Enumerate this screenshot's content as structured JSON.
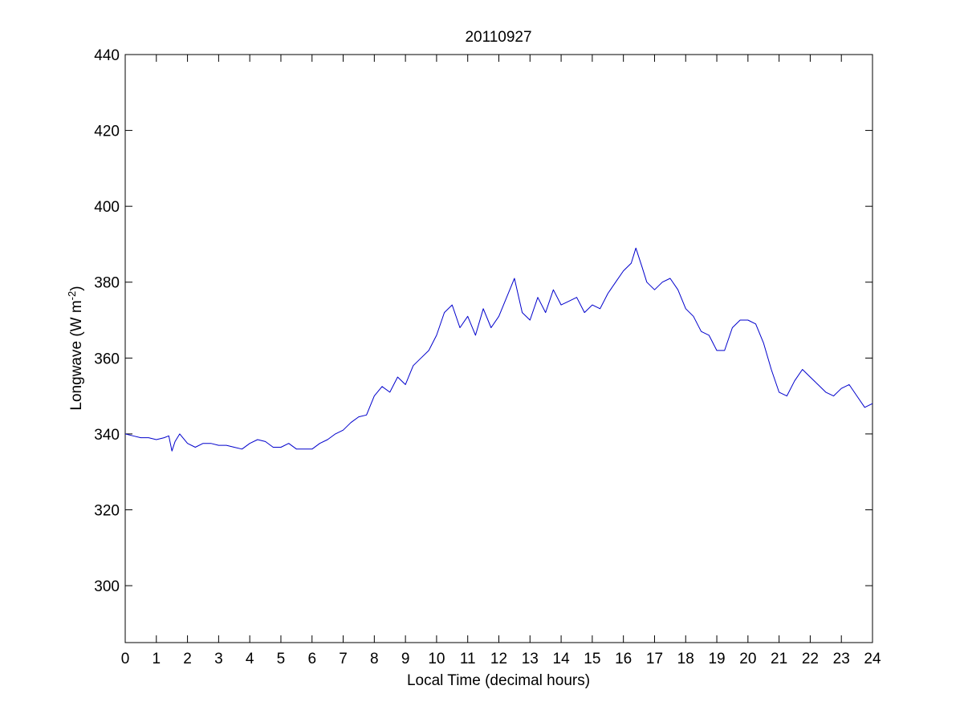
{
  "chart_data": {
    "type": "line",
    "title": "20110927",
    "xlabel": "Local Time (decimal hours)",
    "ylabel_main": "Longwave (W m",
    "ylabel_sup": "-2",
    "ylabel_tail": ")",
    "xlim": [
      0,
      24
    ],
    "ylim": [
      285,
      440
    ],
    "xticks": [
      0,
      1,
      2,
      3,
      4,
      5,
      6,
      7,
      8,
      9,
      10,
      11,
      12,
      13,
      14,
      15,
      16,
      17,
      18,
      19,
      20,
      21,
      22,
      23,
      24
    ],
    "yticks": [
      300,
      320,
      340,
      360,
      380,
      400,
      420,
      440
    ],
    "grid": false,
    "line_color": "#0000cc",
    "series": [
      {
        "x": [
          0,
          0.25,
          0.5,
          0.75,
          1,
          1.25,
          1.4,
          1.5,
          1.6,
          1.75,
          2,
          2.25,
          2.5,
          2.75,
          3,
          3.25,
          3.5,
          3.75,
          4,
          4.25,
          4.5,
          4.75,
          5,
          5.25,
          5.5,
          5.75,
          6,
          6.25,
          6.5,
          6.75,
          7,
          7.25,
          7.5,
          7.75,
          8,
          8.25,
          8.5,
          8.75,
          9,
          9.25,
          9.5,
          9.75,
          10,
          10.25,
          10.5,
          10.75,
          11,
          11.25,
          11.5,
          11.75,
          12,
          12.25,
          12.5,
          12.75,
          13,
          13.25,
          13.5,
          13.75,
          14,
          14.25,
          14.5,
          14.75,
          15,
          15.25,
          15.5,
          15.75,
          16,
          16.25,
          16.4,
          16.6,
          16.75,
          17,
          17.25,
          17.5,
          17.75,
          18,
          18.25,
          18.5,
          18.75,
          19,
          19.25,
          19.5,
          19.75,
          20,
          20.25,
          20.5,
          20.75,
          21,
          21.25,
          21.5,
          21.75,
          22,
          22.25,
          22.5,
          22.75,
          23,
          23.25,
          23.5,
          23.75,
          24
        ],
        "y": [
          340,
          339.5,
          339,
          339,
          338.5,
          339,
          339.5,
          335.5,
          338,
          340,
          337.5,
          336.5,
          337.5,
          337.5,
          337,
          337,
          336.5,
          336,
          337.5,
          338.5,
          338,
          336.5,
          336.5,
          337.5,
          336,
          336,
          336,
          337.5,
          338.5,
          340,
          341,
          343,
          344.5,
          345,
          350,
          352.5,
          351,
          355,
          353,
          358,
          360,
          362,
          366,
          372,
          374,
          368,
          371,
          366,
          373,
          368,
          371,
          376,
          381,
          372,
          370,
          376,
          372,
          378,
          374,
          375,
          376,
          372,
          374,
          373,
          377,
          380,
          383,
          385,
          389,
          384,
          380,
          378,
          380,
          381,
          378,
          373,
          371,
          367,
          366,
          362,
          362,
          368,
          370,
          370,
          369,
          364,
          357,
          351,
          350,
          354,
          357,
          355,
          353,
          351,
          350,
          352,
          353,
          350,
          347,
          348
        ]
      }
    ]
  }
}
